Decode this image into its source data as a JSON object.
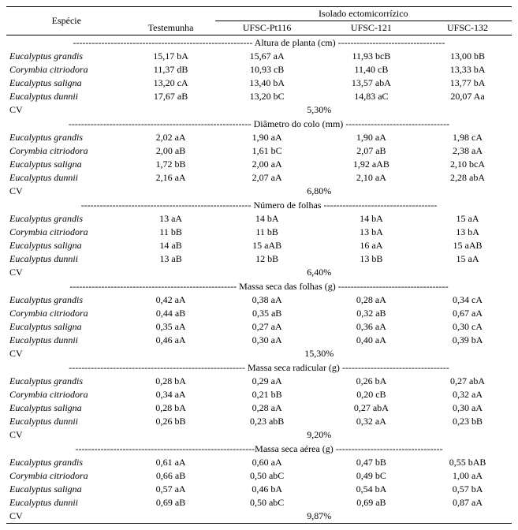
{
  "headers": {
    "especie": "Espécie",
    "testemunha": "Testemunha",
    "isolado": "Isolado ectomicorrízico",
    "u1": "UFSC-Pt116",
    "u2": "UFSC-121",
    "u3": "UFSC-132"
  },
  "species": {
    "eg": "Eucalyptus grandis",
    "cc": "Corymbia citriodora",
    "es": "Eucalyptus saligna",
    "ed": "Eucalyptus dunnii"
  },
  "cv_label": "CV",
  "sections": [
    {
      "title": "--------------------------------------------------------- Altura de planta (cm) ----------------------------------",
      "rows": [
        {
          "sp": "eg",
          "t": "15,17 bA",
          "u1": "15,67 aA",
          "u2": "11,93 bcB",
          "u3": "13,00 bB"
        },
        {
          "sp": "cc",
          "t": "11,37 dB",
          "u1": "10,93 cB",
          "u2": "11,40 cB",
          "u3": "13,33 bA"
        },
        {
          "sp": "es",
          "t": "13,20 cA",
          "u1": "13,40 bA",
          "u2": "13,57 abA",
          "u3": "13,77 bA"
        },
        {
          "sp": "ed",
          "t": "17,67 aB",
          "u1": "13,20 bC",
          "u2": "14,83 aC",
          "u3": "20,07 Aa"
        }
      ],
      "cv": "5,30%"
    },
    {
      "title": "---------------------------------------------------------- Diâmetro do colo (mm) ---------------------------------",
      "rows": [
        {
          "sp": "eg",
          "t": "2,02 aA",
          "u1": "1,90 aA",
          "u2": "1,90 aA",
          "u3": "1,98 cA"
        },
        {
          "sp": "cc",
          "t": "2,00 aB",
          "u1": "1,61 bC",
          "u2": "2,07 aB",
          "u3": "2,38 aA"
        },
        {
          "sp": "es",
          "t": "1,72 bB",
          "u1": "2,00 aA",
          "u2": "1,92 aAB",
          "u3": "2,10 bcA"
        },
        {
          "sp": "ed",
          "t": "2,16 aA",
          "u1": "2,07 aA",
          "u2": "2,10 aA",
          "u3": "2,28 abA"
        }
      ],
      "cv": "6,80%"
    },
    {
      "title": "------------------------------------------------------ Número de folhas ------------------------------------",
      "rows": [
        {
          "sp": "eg",
          "t": "13 aA",
          "u1": "14 bA",
          "u2": "14 bA",
          "u3": "15 aA"
        },
        {
          "sp": "cc",
          "t": "11 bB",
          "u1": "11 bB",
          "u2": "13 bA",
          "u3": "13 bA"
        },
        {
          "sp": "es",
          "t": "14 aB",
          "u1": "15 aAB",
          "u2": "16 aA",
          "u3": "15 aAB"
        },
        {
          "sp": "ed",
          "t": "13 aB",
          "u1": "12 bB",
          "u2": "13 bB",
          "u3": "15 aA"
        }
      ],
      "cv": "6,40%"
    },
    {
      "title": "----------------------------------------------------- Massa seca das folhas (g) -----------------------------------",
      "rows": [
        {
          "sp": "eg",
          "t": "0,42 aA",
          "u1": "0,38 aA",
          "u2": "0,28 aA",
          "u3": "0,34 cA"
        },
        {
          "sp": "cc",
          "t": "0,44 aB",
          "u1": "0,35 aB",
          "u2": "0,32 aB",
          "u3": "0,67 aA"
        },
        {
          "sp": "es",
          "t": "0,35 aA",
          "u1": "0,27 aA",
          "u2": "0,36 aA",
          "u3": "0,30 cA"
        },
        {
          "sp": "ed",
          "t": "0,46 aA",
          "u1": "0,30 aA",
          "u2": "0,40 aA",
          "u3": "0,39 bA"
        }
      ],
      "cv": "15,30%"
    },
    {
      "title": "-------------------------------------------------------- Massa seca radicular (g) ----------------------------------",
      "rows": [
        {
          "sp": "eg",
          "t": "0,28 bA",
          "u1": "0,29 aA",
          "u2": "0,26 bA",
          "u3": "0,27 abA"
        },
        {
          "sp": "cc",
          "t": "0,34 aA",
          "u1": "0,21 bB",
          "u2": "0,20 cB",
          "u3": "0,32 aA"
        },
        {
          "sp": "es",
          "t": "0,28 bA",
          "u1": "0,28 aA",
          "u2": "0,27 abA",
          "u3": "0,30 aA"
        },
        {
          "sp": "ed",
          "t": "0,26 bB",
          "u1": "0,23 abB",
          "u2": "0,32 aA",
          "u3": "0,23 bB"
        }
      ],
      "cv": "9,20%"
    },
    {
      "title": "---------------------------------------------------------Massa seca aérea (g) ----------------------------------",
      "rows": [
        {
          "sp": "eg",
          "t": "0,61 aA",
          "u1": "0,60 aA",
          "u2": "0,47 bB",
          "u3": "0,55 bAB"
        },
        {
          "sp": "cc",
          "t": "0,66 aB",
          "u1": "0,50 abC",
          "u2": "0,49 bC",
          "u3": "1,00 aA"
        },
        {
          "sp": "es",
          "t": "0,57 aA",
          "u1": "0,46 bA",
          "u2": "0,54 bA",
          "u3": "0,57 bA"
        },
        {
          "sp": "ed",
          "t": "0,69 aB",
          "u1": "0,50 abC",
          "u2": "0,69 aB",
          "u3": "0,87 aA"
        }
      ],
      "cv": "9,87%"
    }
  ]
}
